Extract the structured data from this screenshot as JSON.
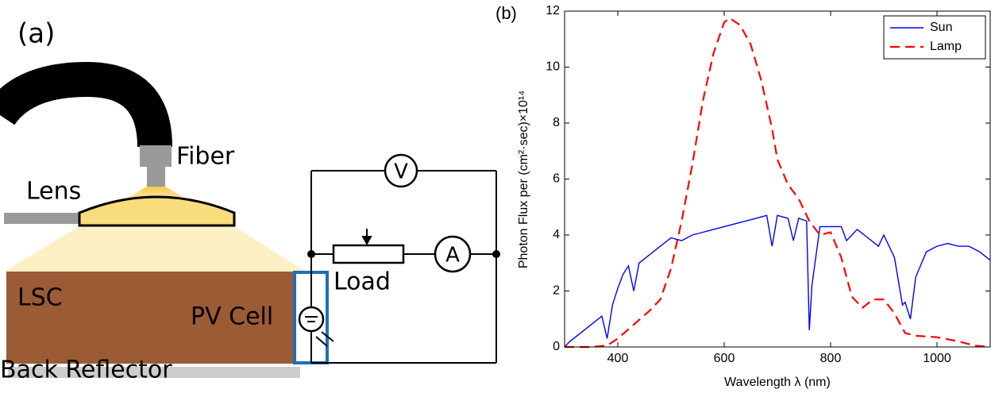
{
  "diagram": {
    "panel_label": "(a)",
    "fiber": "Fiber",
    "lens": "Lens",
    "lsc": "LSC",
    "pv_cell": "PV Cell",
    "back_reflector": "Back Reflector",
    "voltmeter": "V",
    "ammeter": "A",
    "load": "Load"
  },
  "chart_data": {
    "type": "line",
    "panel_label": "(b)",
    "xlabel": "Wavelength λ (nm)",
    "ylabel": "Photon Flux per (cm²·sec)×10¹⁴",
    "xlim": [
      300,
      1100
    ],
    "xticks": [
      400,
      600,
      800,
      1000
    ],
    "ylim": [
      0,
      12
    ],
    "yticks": [
      0,
      2,
      4,
      6,
      8,
      10,
      12
    ],
    "grid": false,
    "legend": "upper right",
    "series": [
      {
        "name": "Sun",
        "color": "#0000ff",
        "style": "solid",
        "x": [
          300,
          310,
          330,
          350,
          370,
          380,
          390,
          400,
          410,
          420,
          430,
          440,
          460,
          480,
          500,
          520,
          540,
          560,
          580,
          600,
          620,
          640,
          660,
          680,
          690,
          700,
          720,
          730,
          740,
          755,
          760,
          765,
          780,
          800,
          820,
          830,
          850,
          870,
          890,
          900,
          920,
          935,
          940,
          950,
          960,
          980,
          1000,
          1020,
          1040,
          1060,
          1080,
          1100
        ],
        "values": [
          0,
          0.2,
          0.5,
          0.8,
          1.1,
          0.3,
          1.5,
          2.1,
          2.6,
          2.9,
          2.0,
          3.0,
          3.3,
          3.6,
          3.9,
          3.8,
          4.0,
          4.1,
          4.2,
          4.3,
          4.4,
          4.5,
          4.6,
          4.7,
          3.6,
          4.7,
          4.6,
          3.8,
          4.6,
          4.5,
          0.6,
          2.2,
          4.3,
          4.3,
          4.3,
          3.8,
          4.2,
          3.9,
          3.6,
          4.0,
          3.2,
          1.5,
          1.6,
          1.0,
          2.5,
          3.4,
          3.6,
          3.7,
          3.6,
          3.6,
          3.4,
          3.1
        ]
      },
      {
        "name": "Lamp",
        "color": "#ff0000",
        "style": "dashed",
        "x": [
          300,
          350,
          380,
          400,
          430,
          460,
          480,
          500,
          520,
          540,
          560,
          580,
          600,
          610,
          630,
          650,
          670,
          690,
          700,
          720,
          740,
          760,
          780,
          800,
          820,
          840,
          860,
          880,
          900,
          920,
          940,
          960,
          1000,
          1040,
          1070,
          1100
        ],
        "values": [
          0,
          0,
          0.05,
          0.3,
          0.8,
          1.3,
          1.7,
          2.8,
          4.5,
          6.5,
          8.8,
          10.5,
          11.6,
          11.75,
          11.5,
          10.8,
          9.5,
          7.8,
          6.7,
          5.8,
          5.3,
          4.5,
          4.0,
          4.1,
          3.2,
          1.8,
          1.4,
          1.7,
          1.7,
          1.2,
          0.5,
          0.4,
          0.35,
          0.2,
          0.05,
          0
        ]
      }
    ]
  }
}
